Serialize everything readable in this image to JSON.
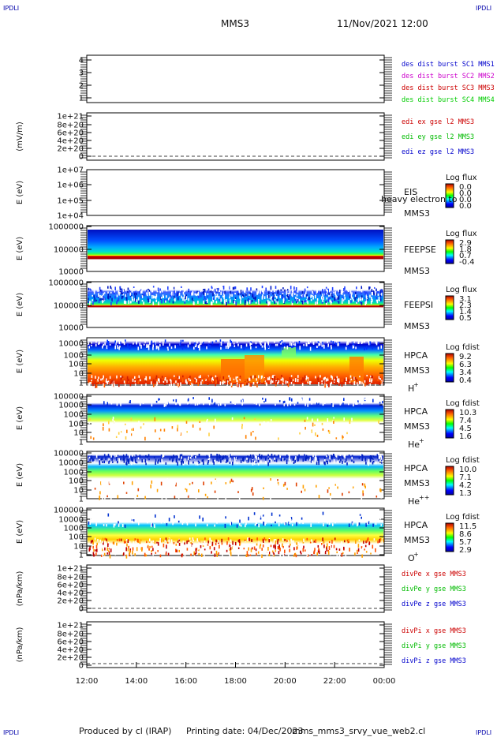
{
  "header": {
    "corner_tl": "IPDLI",
    "corner_tr": "IPDLI",
    "title": "MMS3",
    "date": "11/Nov/2021 12:00",
    "corner_bl": "IPDLI",
    "corner_br": "IPDLI"
  },
  "footer": {
    "produced": "Produced by cl (IRAP)",
    "printing": "Printing date: 04/Dec/2023",
    "file": "mms_mms3_srvy_vue_web2.cl"
  },
  "colors": {
    "c1": "#0000cc",
    "c2": "#cc00cc",
    "c3": "#cc0000",
    "c4": "#00cc00",
    "x": "#cc0000",
    "y": "#00bb00",
    "z": "#0000cc"
  },
  "chart_data": [
    {
      "type": "line",
      "id": "panel1",
      "ylim": [
        1,
        4
      ],
      "ytick_labels": [
        "4",
        "3",
        "2",
        "1"
      ],
      "legend": [
        "des dist burst SC1 MMS1",
        "des dist burst SC2 MMS2",
        "des dist burst SC3 MMS3",
        "des dist burst SC4 MMS4"
      ],
      "series": []
    },
    {
      "type": "line",
      "id": "panel2",
      "ylabel": "(mV/m)",
      "ytick_labels": [
        "1e+21",
        "8e+20",
        "6e+20",
        "4e+20",
        "2e+20",
        "0"
      ],
      "legend": [
        "edi ex gse l2 MMS3",
        "edi ey gse l2 MMS3",
        "edi ez gse l2 MMS3"
      ],
      "series": []
    },
    {
      "type": "heatmap",
      "id": "panel3",
      "ylabel": "E (eV)",
      "ytick_labels": [
        "1e+07",
        "1e+06",
        "1e+05",
        "1e+04"
      ],
      "label_lines": [
        "EIS",
        "MMS3"
      ],
      "overlay_text": "heavy electron to",
      "colorbar": {
        "title": "Log flux",
        "ticks": [
          "0.0",
          "0.0",
          "0.0",
          "0.0"
        ]
      }
    },
    {
      "type": "heatmap",
      "id": "panel4",
      "ylabel": "E (eV)",
      "ytick_labels": [
        "1000000",
        "100000",
        "10000"
      ],
      "label_lines": [
        "FEEPSE",
        "MMS3"
      ],
      "colorbar": {
        "title": "Log flux",
        "ticks": [
          "2.9",
          "1.8",
          "0.7",
          "-0.4"
        ]
      }
    },
    {
      "type": "heatmap",
      "id": "panel5",
      "ylabel": "E (eV)",
      "ytick_labels": [
        "1000000",
        "100000",
        "10000"
      ],
      "label_lines": [
        "FEEPSI",
        "MMS3"
      ],
      "colorbar": {
        "title": "Log flux",
        "ticks": [
          "3.1",
          "2.3",
          "1.4",
          "0.5"
        ]
      }
    },
    {
      "type": "heatmap",
      "id": "panel6",
      "ylabel": "E (eV)",
      "ytick_labels": [
        "10000",
        "1000",
        "100",
        "10",
        "1"
      ],
      "label_lines": [
        "HPCA",
        "MMS3"
      ],
      "species": "H",
      "species_sup": "+",
      "colorbar": {
        "title": "Log fdist",
        "ticks": [
          "9.2",
          "6.3",
          "3.4",
          "0.4"
        ]
      }
    },
    {
      "type": "heatmap",
      "id": "panel7",
      "ylabel": "E (eV)",
      "ytick_labels": [
        "100000",
        "10000",
        "1000",
        "100",
        "10",
        "1"
      ],
      "label_lines": [
        "HPCA",
        "MMS3"
      ],
      "species": "He",
      "species_sup": "+",
      "colorbar": {
        "title": "Log fdist",
        "ticks": [
          "10.3",
          "7.4",
          "4.5",
          "1.6"
        ]
      }
    },
    {
      "type": "heatmap",
      "id": "panel8",
      "ylabel": "E (eV)",
      "ytick_labels": [
        "100000",
        "10000",
        "1000",
        "100",
        "10",
        "1"
      ],
      "label_lines": [
        "HPCA",
        "MMS3"
      ],
      "species": "He",
      "species_sup": "++",
      "colorbar": {
        "title": "Log fdist",
        "ticks": [
          "10.0",
          "7.1",
          "4.2",
          "1.3"
        ]
      }
    },
    {
      "type": "heatmap",
      "id": "panel9",
      "ylabel": "E (eV)",
      "ytick_labels": [
        "100000",
        "10000",
        "1000",
        "100",
        "10",
        "1"
      ],
      "label_lines": [
        "HPCA",
        "MMS3"
      ],
      "species": "O",
      "species_sup": "+",
      "colorbar": {
        "title": "Log fdist",
        "ticks": [
          "11.5",
          "8.6",
          "5.7",
          "2.9"
        ]
      }
    },
    {
      "type": "line",
      "id": "panel10",
      "ylabel": "(nPa/km)",
      "ytick_labels": [
        "1e+21",
        "8e+20",
        "6e+20",
        "4e+20",
        "2e+20",
        "0"
      ],
      "legend": [
        "divPe x gse MMS3",
        "divPe y gse MMS3",
        "divPe z gse MMS3"
      ],
      "series": []
    },
    {
      "type": "line",
      "id": "panel11",
      "ylabel": "(nPa/km)",
      "ytick_labels": [
        "1e+21",
        "8e+20",
        "6e+20",
        "4e+20",
        "2e+20",
        "0"
      ],
      "legend": [
        "divPi x gse MMS3",
        "divPi y gse MMS3",
        "divPi z gse MMS3"
      ],
      "series": []
    }
  ],
  "time_axis": {
    "tick_labels": [
      "12:00",
      "14:00",
      "16:00",
      "18:00",
      "20:00",
      "22:00",
      "00:00"
    ]
  }
}
